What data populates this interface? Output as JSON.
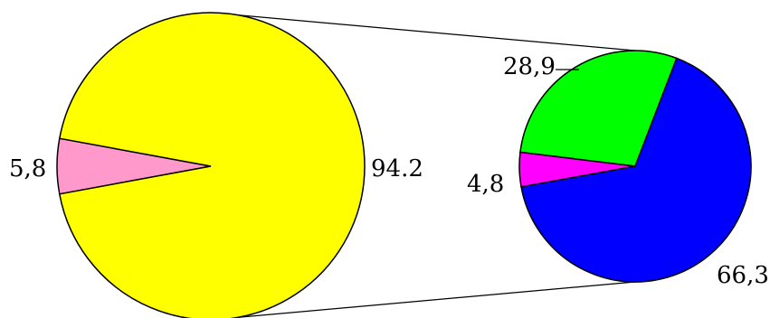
{
  "chart_data": [
    {
      "type": "pie",
      "slices": [
        {
          "label": "5,8",
          "value": 5.8,
          "color": "#ff99cc"
        },
        {
          "label": "94.2",
          "value": 94.2,
          "color": "#ffff00"
        }
      ]
    },
    {
      "type": "pie",
      "slices": [
        {
          "label": "28,9",
          "value": 28.9,
          "color": "#00ff00"
        },
        {
          "label": "4,8",
          "value": 4.8,
          "color": "#ff00ff"
        },
        {
          "label": "66,3",
          "value": 66.3,
          "color": "#0000ff"
        }
      ]
    }
  ]
}
